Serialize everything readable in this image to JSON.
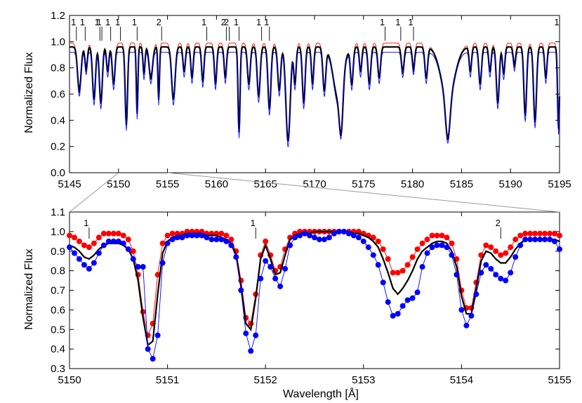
{
  "chart_data": [
    {
      "type": "line",
      "xlabel": "",
      "ylabel": "Normalized Flux",
      "xlim": [
        5145,
        5195
      ],
      "ylim": [
        0.0,
        1.2
      ],
      "xticks": [
        "5145",
        "5150",
        "5155",
        "5160",
        "5165",
        "5170",
        "5175",
        "5180",
        "5185",
        "5190",
        "5195"
      ],
      "yticks": [
        "0.0",
        "0.2",
        "0.4",
        "0.6",
        "0.8",
        "1.0",
        "1.2"
      ],
      "line_markers": [
        {
          "x": 5145.7,
          "label": "1"
        },
        {
          "x": 5146.6,
          "label": "1"
        },
        {
          "x": 5148.1,
          "label": "1"
        },
        {
          "x": 5148.3,
          "label": "1"
        },
        {
          "x": 5149.2,
          "label": "1"
        },
        {
          "x": 5150.2,
          "label": "1"
        },
        {
          "x": 5151.9,
          "label": "1"
        },
        {
          "x": 5154.4,
          "label": "2"
        },
        {
          "x": 5159.0,
          "label": "1"
        },
        {
          "x": 5161.0,
          "label": "2"
        },
        {
          "x": 5161.3,
          "label": "2"
        },
        {
          "x": 5162.3,
          "label": "1"
        },
        {
          "x": 5164.6,
          "label": "1"
        },
        {
          "x": 5165.4,
          "label": "1"
        },
        {
          "x": 5177.2,
          "label": "1"
        },
        {
          "x": 5178.8,
          "label": "1"
        },
        {
          "x": 5180.1,
          "label": "1"
        },
        {
          "x": 5195.0,
          "label": "1"
        }
      ],
      "continuum": [
        0.99,
        0.96,
        0.92
      ],
      "lines": [
        {
          "c": 5146.0,
          "d": 0.35,
          "w": 0.18
        },
        {
          "c": 5146.7,
          "d": 0.18,
          "w": 0.12
        },
        {
          "c": 5147.5,
          "d": 0.42,
          "w": 0.15
        },
        {
          "c": 5148.2,
          "d": 0.45,
          "w": 0.15
        },
        {
          "c": 5148.9,
          "d": 0.2,
          "w": 0.12
        },
        {
          "c": 5149.5,
          "d": 0.3,
          "w": 0.14
        },
        {
          "c": 5150.8,
          "d": 0.62,
          "w": 0.12
        },
        {
          "c": 5151.9,
          "d": 0.53,
          "w": 0.08
        },
        {
          "c": 5152.6,
          "d": 0.22,
          "w": 0.1
        },
        {
          "c": 5153.3,
          "d": 0.25,
          "w": 0.18
        },
        {
          "c": 5154.1,
          "d": 0.42,
          "w": 0.08
        },
        {
          "c": 5155.6,
          "d": 0.42,
          "w": 0.18
        },
        {
          "c": 5156.7,
          "d": 0.2,
          "w": 0.12
        },
        {
          "c": 5157.5,
          "d": 0.25,
          "w": 0.12
        },
        {
          "c": 5158.6,
          "d": 0.28,
          "w": 0.12
        },
        {
          "c": 5159.9,
          "d": 0.3,
          "w": 0.12
        },
        {
          "c": 5160.9,
          "d": 0.25,
          "w": 0.12
        },
        {
          "c": 5162.3,
          "d": 0.68,
          "w": 0.1
        },
        {
          "c": 5163.3,
          "d": 0.3,
          "w": 0.14
        },
        {
          "c": 5164.3,
          "d": 0.4,
          "w": 0.15
        },
        {
          "c": 5165.4,
          "d": 0.5,
          "w": 0.15
        },
        {
          "c": 5166.4,
          "d": 0.35,
          "w": 0.15
        },
        {
          "c": 5167.3,
          "d": 0.75,
          "w": 0.22
        },
        {
          "c": 5168.0,
          "d": 0.3,
          "w": 0.12
        },
        {
          "c": 5168.9,
          "d": 0.45,
          "w": 0.14
        },
        {
          "c": 5169.8,
          "d": 0.3,
          "w": 0.12
        },
        {
          "c": 5171.0,
          "d": 0.35,
          "w": 0.15
        },
        {
          "c": 5172.4,
          "d": 0.4,
          "w": 0.5
        },
        {
          "c": 5172.7,
          "d": 0.55,
          "w": 0.18
        },
        {
          "c": 5173.8,
          "d": 0.3,
          "w": 0.14
        },
        {
          "c": 5174.7,
          "d": 0.2,
          "w": 0.12
        },
        {
          "c": 5175.6,
          "d": 0.3,
          "w": 0.14
        },
        {
          "c": 5176.6,
          "d": 0.25,
          "w": 0.14
        },
        {
          "c": 5179.0,
          "d": 0.2,
          "w": 0.14
        },
        {
          "c": 5180.1,
          "d": 0.18,
          "w": 0.12
        },
        {
          "c": 5181.4,
          "d": 0.25,
          "w": 0.14
        },
        {
          "c": 5183.6,
          "d": 0.55,
          "w": 0.22
        },
        {
          "c": 5183.6,
          "d": 0.4,
          "w": 0.7
        },
        {
          "c": 5185.9,
          "d": 0.2,
          "w": 0.12
        },
        {
          "c": 5186.9,
          "d": 0.3,
          "w": 0.14
        },
        {
          "c": 5187.9,
          "d": 0.2,
          "w": 0.12
        },
        {
          "c": 5188.7,
          "d": 0.45,
          "w": 0.15
        },
        {
          "c": 5189.3,
          "d": 0.22,
          "w": 0.12
        },
        {
          "c": 5190.4,
          "d": 0.15,
          "w": 0.12
        },
        {
          "c": 5191.5,
          "d": 0.55,
          "w": 0.14
        },
        {
          "c": 5192.5,
          "d": 0.6,
          "w": 0.15
        },
        {
          "c": 5193.6,
          "d": 0.25,
          "w": 0.12
        },
        {
          "c": 5194.9,
          "d": 0.65,
          "w": 0.1
        }
      ],
      "series": [
        {
          "color": "#ff0000",
          "style": "line"
        },
        {
          "color": "#000000",
          "style": "thick-line"
        },
        {
          "color": "#0000ff",
          "style": "line"
        }
      ]
    },
    {
      "type": "line",
      "xlabel": "Wavelength [Å]",
      "ylabel": "Normalized Flux",
      "xlim": [
        5150,
        5155
      ],
      "ylim": [
        0.3,
        1.1
      ],
      "xticks": [
        "5150",
        "5151",
        "5152",
        "5153",
        "5154",
        "5155"
      ],
      "yticks": [
        "0.3",
        "0.4",
        "0.5",
        "0.6",
        "0.7",
        "0.8",
        "0.9",
        "1.0",
        "1.1"
      ],
      "line_markers": [
        {
          "x": 5150.2,
          "label": "1"
        },
        {
          "x": 5151.9,
          "label": "1"
        },
        {
          "x": 5154.4,
          "label": "2"
        }
      ],
      "x": [
        5150.0,
        5150.05,
        5150.1,
        5150.15,
        5150.2,
        5150.25,
        5150.3,
        5150.35,
        5150.4,
        5150.45,
        5150.5,
        5150.55,
        5150.6,
        5150.65,
        5150.7,
        5150.75,
        5150.8,
        5150.85,
        5150.9,
        5150.95,
        5151.0,
        5151.05,
        5151.1,
        5151.15,
        5151.2,
        5151.25,
        5151.3,
        5151.35,
        5151.4,
        5151.45,
        5151.5,
        5151.55,
        5151.6,
        5151.65,
        5151.7,
        5151.75,
        5151.8,
        5151.85,
        5151.9,
        5151.95,
        5152.0,
        5152.05,
        5152.1,
        5152.15,
        5152.2,
        5152.25,
        5152.3,
        5152.35,
        5152.4,
        5152.45,
        5152.5,
        5152.55,
        5152.6,
        5152.65,
        5152.7,
        5152.75,
        5152.8,
        5152.85,
        5152.9,
        5152.95,
        5153.0,
        5153.05,
        5153.1,
        5153.15,
        5153.2,
        5153.25,
        5153.3,
        5153.35,
        5153.4,
        5153.45,
        5153.5,
        5153.55,
        5153.6,
        5153.65,
        5153.7,
        5153.75,
        5153.8,
        5153.85,
        5153.9,
        5153.95,
        5154.0,
        5154.05,
        5154.1,
        5154.15,
        5154.2,
        5154.25,
        5154.3,
        5154.35,
        5154.4,
        5154.45,
        5154.5,
        5154.55,
        5154.6,
        5154.65,
        5154.7,
        5154.75,
        5154.8,
        5154.85,
        5154.9,
        5154.95,
        5155.0
      ],
      "series": [
        {
          "color": "#ff0000",
          "style": "line+markers",
          "values": [
            0.98,
            0.97,
            0.95,
            0.93,
            0.92,
            0.94,
            0.97,
            0.99,
            0.99,
            0.99,
            0.99,
            0.98,
            0.96,
            0.9,
            0.78,
            0.59,
            0.47,
            0.53,
            0.78,
            0.94,
            0.98,
            0.99,
            0.99,
            0.99,
            1.0,
            1.0,
            1.0,
            1.0,
            0.99,
            0.99,
            0.99,
            0.99,
            0.98,
            0.96,
            0.9,
            0.75,
            0.56,
            0.53,
            0.68,
            0.88,
            0.95,
            0.88,
            0.8,
            0.82,
            0.91,
            0.97,
            0.99,
            1.0,
            1.0,
            1.0,
            1.0,
            1.0,
            1.0,
            1.0,
            1.0,
            1.0,
            1.0,
            1.0,
            1.0,
            1.0,
            0.99,
            0.98,
            0.97,
            0.95,
            0.91,
            0.86,
            0.79,
            0.79,
            0.8,
            0.83,
            0.87,
            0.91,
            0.94,
            0.96,
            0.98,
            0.98,
            0.98,
            0.97,
            0.94,
            0.86,
            0.7,
            0.61,
            0.61,
            0.74,
            0.88,
            0.93,
            0.92,
            0.9,
            0.88,
            0.89,
            0.92,
            0.96,
            0.98,
            0.99,
            0.99,
            0.99,
            0.99,
            0.99,
            0.99,
            0.99,
            0.98
          ]
        },
        {
          "color": "#000000",
          "style": "thick-line",
          "values": [
            0.93,
            0.92,
            0.9,
            0.87,
            0.86,
            0.88,
            0.91,
            0.93,
            0.94,
            0.94,
            0.94,
            0.93,
            0.91,
            0.86,
            0.75,
            0.56,
            0.42,
            0.44,
            0.68,
            0.89,
            0.95,
            0.97,
            0.98,
            0.98,
            0.99,
            0.99,
            0.99,
            0.99,
            0.98,
            0.98,
            0.98,
            0.97,
            0.96,
            0.94,
            0.88,
            0.72,
            0.53,
            0.5,
            0.66,
            0.86,
            0.93,
            0.86,
            0.78,
            0.79,
            0.88,
            0.96,
            0.98,
            0.99,
            0.99,
            0.99,
            1.0,
            1.0,
            1.0,
            1.0,
            1.0,
            1.0,
            1.0,
            1.0,
            0.99,
            0.99,
            0.98,
            0.97,
            0.95,
            0.92,
            0.86,
            0.79,
            0.71,
            0.68,
            0.71,
            0.75,
            0.8,
            0.86,
            0.9,
            0.92,
            0.94,
            0.95,
            0.95,
            0.94,
            0.9,
            0.82,
            0.67,
            0.58,
            0.58,
            0.71,
            0.85,
            0.9,
            0.89,
            0.86,
            0.84,
            0.84,
            0.87,
            0.91,
            0.94,
            0.96,
            0.96,
            0.96,
            0.96,
            0.96,
            0.96,
            0.96,
            0.95
          ]
        },
        {
          "color": "#0000ff",
          "style": "line+markers",
          "values": [
            0.92,
            0.89,
            0.86,
            0.83,
            0.81,
            0.84,
            0.89,
            0.93,
            0.95,
            0.95,
            0.95,
            0.94,
            0.91,
            0.86,
            0.82,
            0.82,
            0.4,
            0.35,
            0.47,
            0.84,
            0.94,
            0.96,
            0.97,
            0.97,
            0.98,
            0.98,
            0.98,
            0.98,
            0.97,
            0.96,
            0.96,
            0.96,
            0.95,
            0.93,
            0.87,
            0.7,
            0.48,
            0.39,
            0.47,
            0.76,
            0.85,
            0.82,
            0.76,
            0.72,
            0.81,
            0.93,
            0.97,
            0.98,
            0.99,
            0.98,
            0.97,
            0.96,
            0.96,
            0.97,
            0.99,
            1.0,
            1.0,
            0.99,
            0.98,
            0.97,
            0.95,
            0.92,
            0.88,
            0.83,
            0.74,
            0.64,
            0.57,
            0.58,
            0.62,
            0.65,
            0.66,
            0.69,
            0.82,
            0.89,
            0.92,
            0.93,
            0.93,
            0.92,
            0.88,
            0.78,
            0.6,
            0.52,
            0.57,
            0.68,
            0.79,
            0.83,
            0.81,
            0.78,
            0.76,
            0.75,
            0.79,
            0.87,
            0.93,
            0.96,
            0.96,
            0.96,
            0.96,
            0.96,
            0.96,
            0.95,
            0.91
          ]
        }
      ]
    }
  ]
}
